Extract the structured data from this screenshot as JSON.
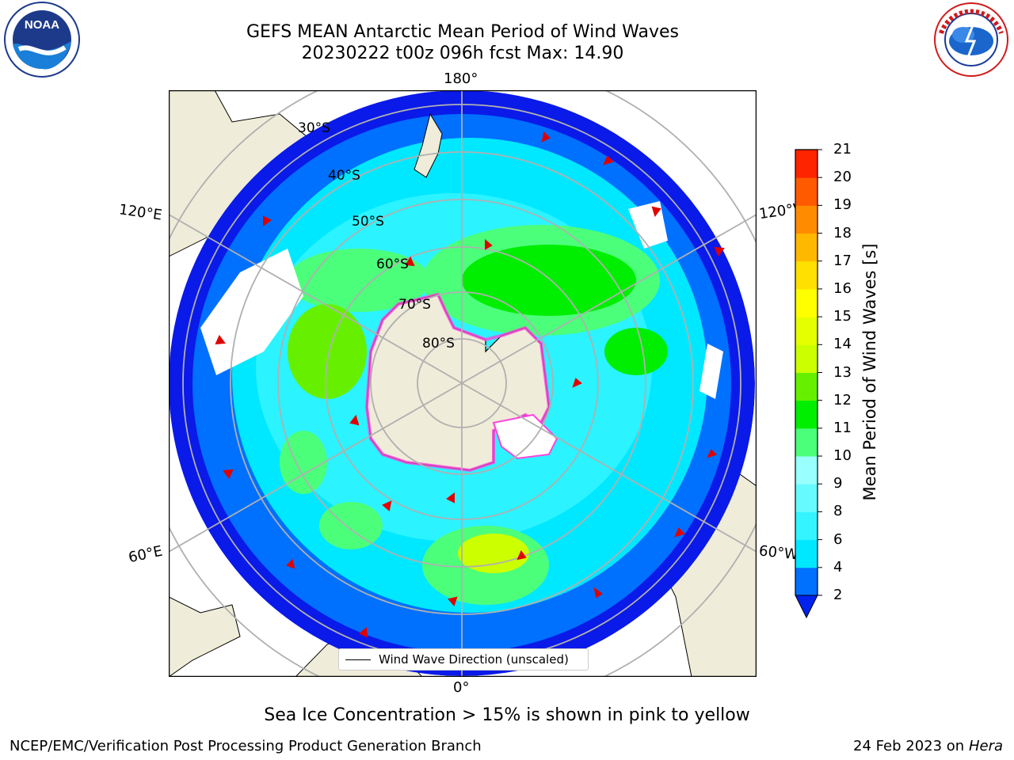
{
  "header": {
    "title_line1": "GEFS MEAN Antarctic Mean Period of Wind Waves",
    "title_line2": "20230222 t00z 096h fcst   Max: 14.90"
  },
  "logos": {
    "left": "NOAA",
    "left_ring_text": "NATIONAL OCEANIC AND ATMOSPHERIC ADMINISTRATION · U.S. DEPARTMENT OF COMMERCE",
    "right_ring_text": "NATIONAL WEATHER SERVICE"
  },
  "map": {
    "lon_labels": {
      "top": "180°",
      "bottom": "0°",
      "left_upper": "120°E",
      "left_lower": "60°E",
      "right_upper": "120°W",
      "right_lower": "60°W"
    },
    "lat_labels": [
      "30°S",
      "40°S",
      "50°S",
      "60°S",
      "70°S",
      "80°S"
    ],
    "colors": {
      "land": "#efecd9",
      "ocean_fill": "#ffffff",
      "grid": "#b0b0b0",
      "arrow": "#e00000"
    }
  },
  "legend": {
    "label": "Wind Wave Direction (unscaled)"
  },
  "colorbar": {
    "label": "Mean Period of Wind Waves [s]",
    "ticks": [
      "2",
      "4",
      "6",
      "8",
      "9",
      "10",
      "11",
      "12",
      "13",
      "14",
      "15",
      "16",
      "17",
      "18",
      "19",
      "20",
      "21"
    ],
    "colors": [
      "#0070ff",
      "#00e8ff",
      "#33f4ff",
      "#66faff",
      "#99ffff",
      "#4cff7a",
      "#00ee00",
      "#66f000",
      "#ccff00",
      "#e6ff00",
      "#ffff00",
      "#ffe000",
      "#ffb800",
      "#ff8c00",
      "#ff5a00",
      "#ff2400"
    ],
    "extend_color": "#0022ee"
  },
  "caption": "Sea Ice Concentration > 15% is shown in pink to yellow",
  "footer": {
    "left": "NCEP/EMC/Verification Post Processing Product Generation Branch",
    "right_date": "24 Feb 2023 on",
    "right_host": "Hera"
  }
}
